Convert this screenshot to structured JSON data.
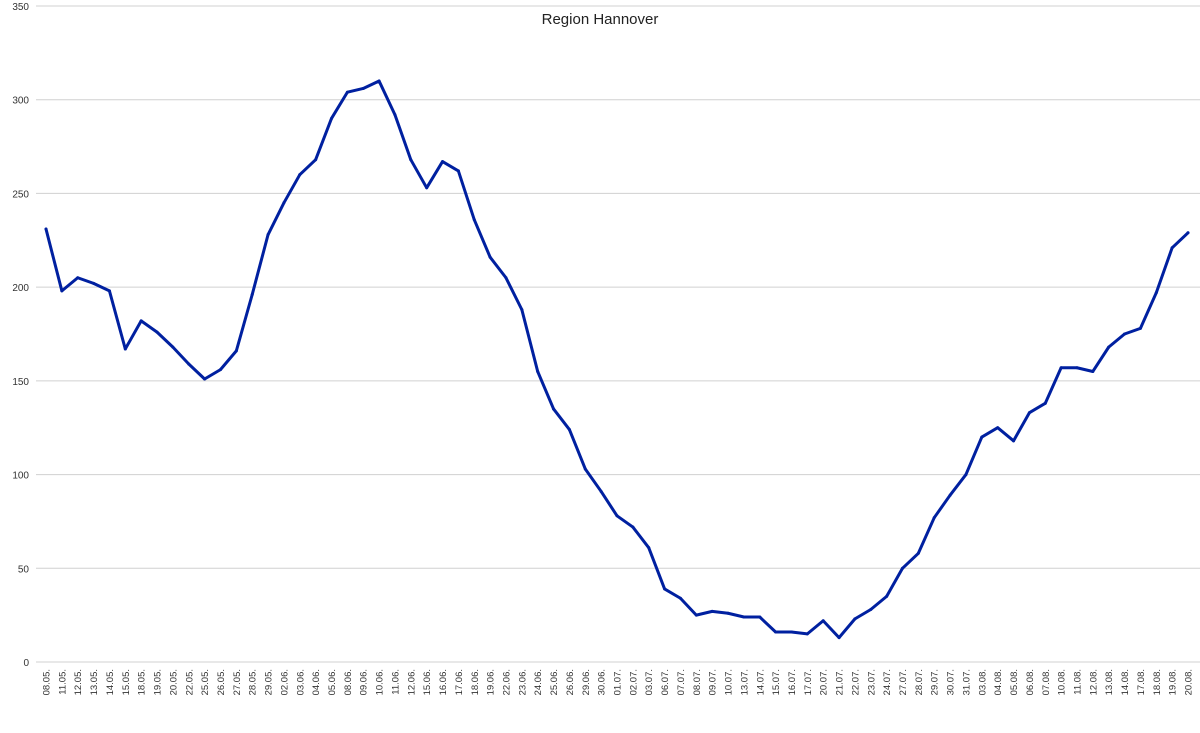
{
  "chart_data": {
    "type": "line",
    "title": "Region Hannover",
    "xlabel": "",
    "ylabel": "",
    "ylim": [
      0,
      350
    ],
    "yticks": [
      0,
      50,
      100,
      150,
      200,
      250,
      300,
      350
    ],
    "grid": true,
    "legend": "none",
    "line_color": "#0020a0",
    "grid_color": "#d0d0d0",
    "categories": [
      "08.05.",
      "11.05.",
      "12.05.",
      "13.05.",
      "14.05.",
      "15.05.",
      "18.05.",
      "19.05.",
      "20.05.",
      "22.05.",
      "25.05.",
      "26.05.",
      "27.05.",
      "28.05.",
      "29.05.",
      "02.06.",
      "03.06.",
      "04.06.",
      "05.06.",
      "08.06.",
      "09.06.",
      "10.06.",
      "11.06.",
      "12.06.",
      "15.06.",
      "16.06.",
      "17.06.",
      "18.06.",
      "19.06.",
      "22.06.",
      "23.06.",
      "24.06.",
      "25.06.",
      "26.06.",
      "29.06.",
      "30.06.",
      "01.07.",
      "02.07.",
      "03.07.",
      "06.07.",
      "07.07.",
      "08.07.",
      "09.07.",
      "10.07.",
      "13.07.",
      "14.07.",
      "15.07.",
      "16.07.",
      "17.07.",
      "20.07.",
      "21.07.",
      "22.07.",
      "23.07.",
      "24.07.",
      "27.07.",
      "28.07.",
      "29.07.",
      "30.07.",
      "31.07.",
      "03.08.",
      "04.08.",
      "05.08.",
      "06.08.",
      "07.08.",
      "10.08.",
      "11.08.",
      "12.08.",
      "13.08.",
      "14.08.",
      "17.08.",
      "18.08.",
      "19.08.",
      "20.08."
    ],
    "series": [
      {
        "values": [
          231,
          198,
          205,
          202,
          198,
          167,
          182,
          176,
          168,
          159,
          151,
          156,
          166,
          196,
          228,
          245,
          260,
          268,
          290,
          304,
          306,
          310,
          292,
          268,
          253,
          267,
          262,
          236,
          216,
          205,
          188,
          155,
          135,
          124,
          103,
          91,
          78,
          72,
          61,
          39,
          34,
          25,
          27,
          26,
          24,
          24,
          16,
          16,
          15,
          22,
          13,
          23,
          28,
          35,
          50,
          58,
          77,
          89,
          100,
          120,
          125,
          118,
          133,
          138,
          157,
          157,
          155,
          168,
          175,
          178,
          197,
          221,
          229
        ]
      }
    ]
  }
}
